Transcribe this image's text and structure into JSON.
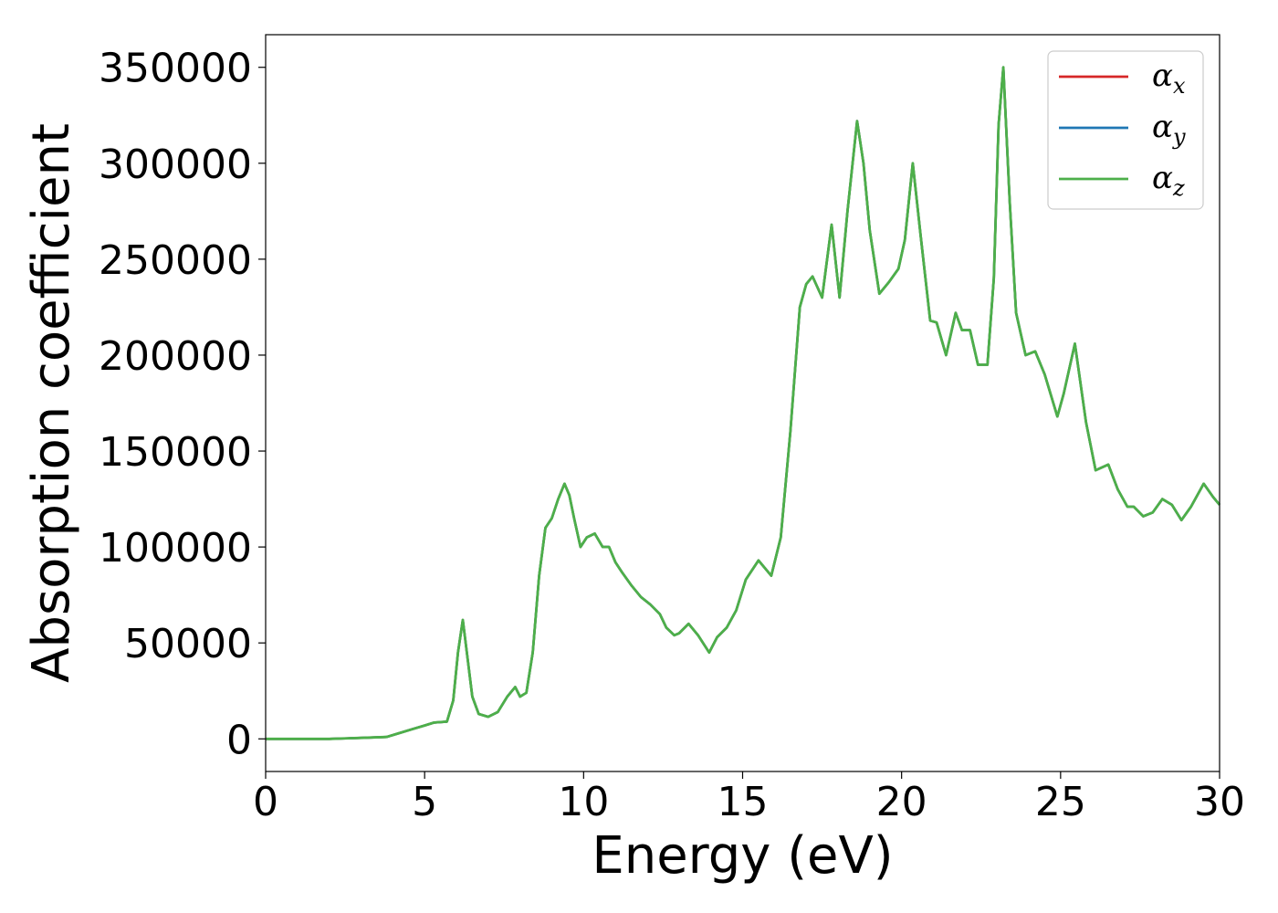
{
  "chart_data": {
    "type": "line",
    "xlabel": "Energy (eV)",
    "ylabel": "Absorption coefficient",
    "xlim": [
      0,
      30
    ],
    "ylim": [
      -17000,
      367000
    ],
    "x_ticks": [
      0,
      5,
      10,
      15,
      20,
      25,
      30
    ],
    "y_ticks": [
      0,
      50000,
      100000,
      150000,
      200000,
      250000,
      300000,
      350000
    ],
    "grid": false,
    "legend_position": "top-right",
    "series_colors": [
      "#d62728",
      "#1f77b4",
      "#4daf4a"
    ],
    "legend": [
      {
        "symbol": "α",
        "sub": "x",
        "color": "#d62728"
      },
      {
        "symbol": "α",
        "sub": "y",
        "color": "#1f77b4"
      },
      {
        "symbol": "α",
        "sub": "z",
        "color": "#4daf4a"
      }
    ],
    "x": [
      0,
      1,
      2,
      3,
      3.8,
      4.2,
      4.6,
      5.0,
      5.3,
      5.7,
      5.9,
      6.05,
      6.2,
      6.35,
      6.5,
      6.7,
      7.0,
      7.3,
      7.6,
      7.85,
      8.0,
      8.2,
      8.4,
      8.6,
      8.8,
      9.0,
      9.2,
      9.4,
      9.55,
      9.7,
      9.9,
      10.1,
      10.35,
      10.6,
      10.8,
      11.0,
      11.2,
      11.5,
      11.8,
      12.1,
      12.4,
      12.6,
      12.85,
      13.0,
      13.3,
      13.6,
      13.95,
      14.2,
      14.5,
      14.8,
      15.1,
      15.5,
      15.9,
      16.2,
      16.5,
      16.8,
      17.0,
      17.2,
      17.5,
      17.8,
      18.05,
      18.3,
      18.6,
      18.8,
      19.0,
      19.3,
      19.6,
      19.9,
      20.1,
      20.35,
      20.6,
      20.9,
      21.1,
      21.4,
      21.7,
      21.9,
      22.15,
      22.4,
      22.7,
      22.9,
      23.05,
      23.2,
      23.4,
      23.6,
      23.9,
      24.2,
      24.5,
      24.9,
      25.1,
      25.45,
      25.8,
      26.1,
      26.5,
      26.8,
      27.1,
      27.3,
      27.6,
      27.9,
      28.2,
      28.5,
      28.8,
      29.1,
      29.5,
      29.8,
      30.0
    ],
    "series": [
      {
        "values": [
          0,
          0,
          0,
          500,
          1000,
          3000,
          5000,
          7000,
          8500,
          9000,
          20000,
          45000,
          62000,
          42000,
          22000,
          13000,
          11500,
          14000,
          22000,
          27000,
          22000,
          24000,
          45000,
          85000,
          110000,
          115000,
          125000,
          133000,
          127000,
          115000,
          100000,
          105000,
          107000,
          100000,
          100000,
          92000,
          87000,
          80000,
          74000,
          70000,
          65000,
          58000,
          54000,
          55000,
          60000,
          54000,
          45000,
          53000,
          58000,
          67000,
          83000,
          93000,
          85000,
          105000,
          160000,
          225000,
          237000,
          241000,
          230000,
          268000,
          230000,
          275000,
          322000,
          300000,
          265000,
          232000,
          238000,
          245000,
          260000,
          300000,
          262000,
          218000,
          217000,
          200000,
          222000,
          213000,
          213000,
          195000,
          195000,
          240000,
          320000,
          350000,
          280000,
          222000,
          200000,
          202000,
          190000,
          168000,
          180000,
          206000,
          165000,
          140000,
          143000,
          130000,
          121000,
          121000,
          116000,
          118000,
          125000,
          122000,
          114000,
          121000,
          133000,
          126000,
          122000
        ]
      },
      {
        "values": [
          0,
          0,
          0,
          500,
          1000,
          3000,
          5000,
          7000,
          8500,
          9000,
          20000,
          45000,
          62000,
          42000,
          22000,
          13000,
          11500,
          14000,
          22000,
          27000,
          22000,
          24000,
          45000,
          85000,
          110000,
          115000,
          125000,
          133000,
          127000,
          115000,
          100000,
          105000,
          107000,
          100000,
          100000,
          92000,
          87000,
          80000,
          74000,
          70000,
          65000,
          58000,
          54000,
          55000,
          60000,
          54000,
          45000,
          53000,
          58000,
          67000,
          83000,
          93000,
          85000,
          105000,
          160000,
          225000,
          237000,
          241000,
          230000,
          268000,
          230000,
          275000,
          322000,
          300000,
          265000,
          232000,
          238000,
          245000,
          260000,
          300000,
          262000,
          218000,
          217000,
          200000,
          222000,
          213000,
          213000,
          195000,
          195000,
          240000,
          320000,
          350000,
          280000,
          222000,
          200000,
          202000,
          190000,
          168000,
          180000,
          206000,
          165000,
          140000,
          143000,
          130000,
          121000,
          121000,
          116000,
          118000,
          125000,
          122000,
          114000,
          121000,
          133000,
          126000,
          122000
        ]
      },
      {
        "values": [
          0,
          0,
          0,
          500,
          1000,
          3000,
          5000,
          7000,
          8500,
          9000,
          20000,
          45000,
          62000,
          42000,
          22000,
          13000,
          11500,
          14000,
          22000,
          27000,
          22000,
          24000,
          45000,
          85000,
          110000,
          115000,
          125000,
          133000,
          127000,
          115000,
          100000,
          105000,
          107000,
          100000,
          100000,
          92000,
          87000,
          80000,
          74000,
          70000,
          65000,
          58000,
          54000,
          55000,
          60000,
          54000,
          45000,
          53000,
          58000,
          67000,
          83000,
          93000,
          85000,
          105000,
          160000,
          225000,
          237000,
          241000,
          230000,
          268000,
          230000,
          275000,
          322000,
          300000,
          265000,
          232000,
          238000,
          245000,
          260000,
          300000,
          262000,
          218000,
          217000,
          200000,
          222000,
          213000,
          213000,
          195000,
          195000,
          240000,
          320000,
          350000,
          280000,
          222000,
          200000,
          202000,
          190000,
          168000,
          180000,
          206000,
          165000,
          140000,
          143000,
          130000,
          121000,
          121000,
          116000,
          118000,
          125000,
          122000,
          114000,
          121000,
          133000,
          126000,
          122000
        ]
      }
    ]
  }
}
